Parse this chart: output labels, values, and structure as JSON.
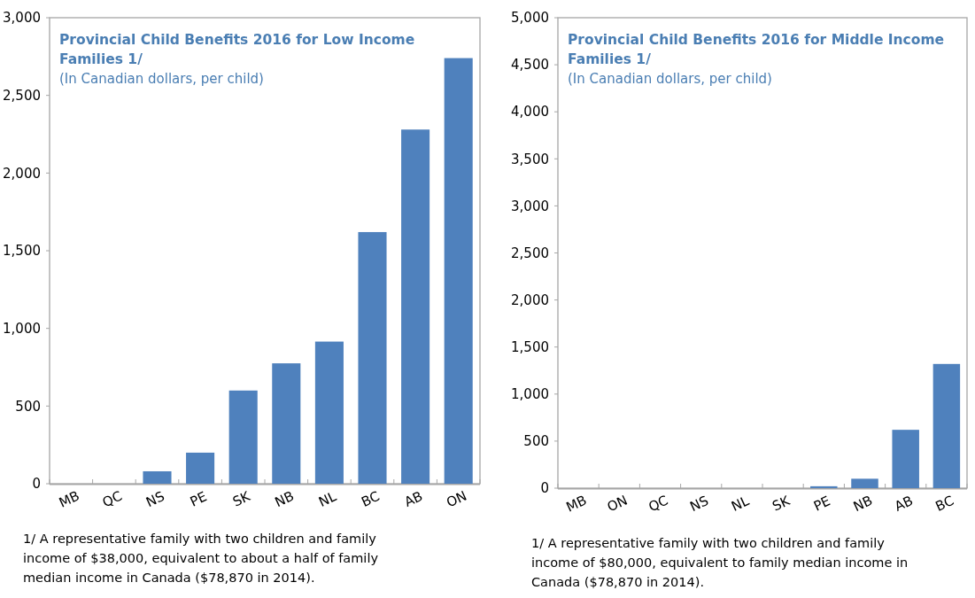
{
  "chart_data": [
    {
      "type": "bar",
      "title": "Provincial Child Benefits 2016 for Low Income Families 1/",
      "subtitle": "(In Canadian dollars, per child)",
      "categories": [
        "MB",
        "QC",
        "NS",
        "PE",
        "SK",
        "NB",
        "NL",
        "BC",
        "AB",
        "ON"
      ],
      "values": [
        0,
        0,
        80,
        200,
        600,
        775,
        915,
        1620,
        2280,
        2740
      ],
      "color": "#4f81bd",
      "ylim": [
        0,
        3000
      ],
      "yticks": [
        {
          "value": 0,
          "label": "0"
        },
        {
          "value": 500,
          "label": "500"
        },
        {
          "value": 1000,
          "label": "1,000"
        },
        {
          "value": 1500,
          "label": "1,500"
        },
        {
          "value": 2000,
          "label": "2,000"
        },
        {
          "value": 2500,
          "label": "2,500"
        },
        {
          "value": 3000,
          "label": "3,000"
        }
      ],
      "grid": false,
      "annotations": [
        "1/ A representative family with two children and family income of $38,000, equivalent to about a half of family median income in Canada ($78,870 in 2014)."
      ]
    },
    {
      "type": "bar",
      "title": "Provincial Child Benefits 2016 for Middle Income Families 1/",
      "subtitle": "(In Canadian dollars, per child)",
      "categories": [
        "MB",
        "ON",
        "QC",
        "NS",
        "NL",
        "SK",
        "PE",
        "NB",
        "AB",
        "BC"
      ],
      "values": [
        0,
        0,
        0,
        0,
        0,
        0,
        20,
        100,
        620,
        1320
      ],
      "color": "#4f81bd",
      "ylim": [
        0,
        5000
      ],
      "yticks": [
        {
          "value": 0,
          "label": "0"
        },
        {
          "value": 500,
          "label": "500"
        },
        {
          "value": 1000,
          "label": "1,000"
        },
        {
          "value": 1500,
          "label": "1,500"
        },
        {
          "value": 2000,
          "label": "2,000"
        },
        {
          "value": 2500,
          "label": "2,500"
        },
        {
          "value": 3000,
          "label": "3,000"
        },
        {
          "value": 3500,
          "label": "3,500"
        },
        {
          "value": 4000,
          "label": "4,000"
        },
        {
          "value": 4500,
          "label": "4,500"
        },
        {
          "value": 5000,
          "label": "5,000"
        }
      ],
      "grid": false,
      "annotations": [
        "1/ A representative family with two children and family income of $80,000, equivalent to family median income in Canada ($78,870 in 2014)."
      ]
    }
  ]
}
